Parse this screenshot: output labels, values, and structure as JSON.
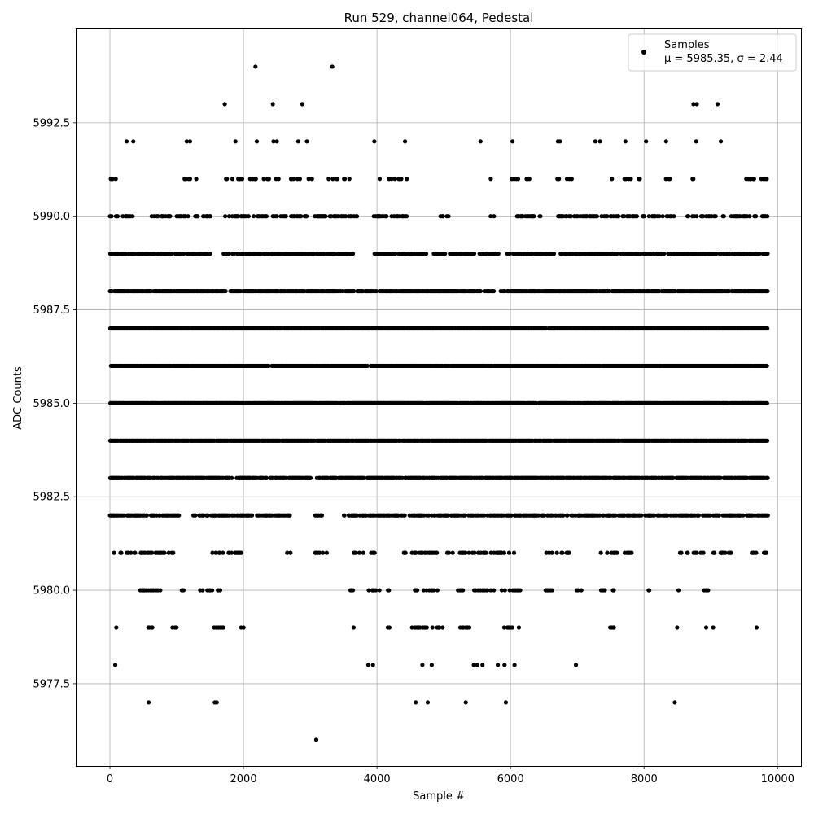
{
  "chart_data": {
    "type": "scatter",
    "title": "Run 529, channel064, Pedestal",
    "xlabel": "Sample #",
    "ylabel": "ADC Counts",
    "xlim": [
      -500,
      10350
    ],
    "ylim": [
      5975.3,
      5995.0
    ],
    "x_ticks": [
      0,
      2000,
      4000,
      6000,
      8000,
      10000
    ],
    "x_tick_labels": [
      "0",
      "2000",
      "4000",
      "6000",
      "8000",
      "10000"
    ],
    "y_ticks": [
      5977.5,
      5980.0,
      5982.5,
      5985.0,
      5987.5,
      5990.0,
      5992.5
    ],
    "y_tick_labels": [
      "5977.5",
      "5980.0",
      "5982.5",
      "5985.0",
      "5987.5",
      "5990.0",
      "5992.5"
    ],
    "grid": true,
    "legend": {
      "placement": "top-right",
      "series_name": "Samples",
      "stats": "μ = 5985.35, σ = 2.44"
    },
    "marker_color": "#000000",
    "series": [
      {
        "name": "Samples",
        "sample_count": 9850,
        "x_range": [
          0,
          9850
        ],
        "mean": 5985.35,
        "std": 2.44,
        "outliers": [
          {
            "x": 2180,
            "y": 5994
          },
          {
            "x": 3330,
            "y": 5994
          },
          {
            "x": 1720,
            "y": 5993
          },
          {
            "x": 2440,
            "y": 5993
          },
          {
            "x": 2880,
            "y": 5993
          },
          {
            "x": 8740,
            "y": 5993
          },
          {
            "x": 8790,
            "y": 5993
          },
          {
            "x": 9100,
            "y": 5993
          },
          {
            "x": 250,
            "y": 5992
          },
          {
            "x": 350,
            "y": 5992
          },
          {
            "x": 1150,
            "y": 5992
          },
          {
            "x": 1200,
            "y": 5992
          },
          {
            "x": 1880,
            "y": 5992
          },
          {
            "x": 2200,
            "y": 5992
          },
          {
            "x": 2450,
            "y": 5992
          },
          {
            "x": 2500,
            "y": 5992
          },
          {
            "x": 2820,
            "y": 5992
          },
          {
            "x": 2950,
            "y": 5992
          },
          {
            "x": 3960,
            "y": 5992
          },
          {
            "x": 4420,
            "y": 5992
          },
          {
            "x": 5550,
            "y": 5992
          },
          {
            "x": 6030,
            "y": 5992
          },
          {
            "x": 6710,
            "y": 5992
          },
          {
            "x": 6740,
            "y": 5992
          },
          {
            "x": 7270,
            "y": 5992
          },
          {
            "x": 7340,
            "y": 5992
          },
          {
            "x": 7720,
            "y": 5992
          },
          {
            "x": 8030,
            "y": 5992
          },
          {
            "x": 8330,
            "y": 5992
          },
          {
            "x": 8780,
            "y": 5992
          },
          {
            "x": 9150,
            "y": 5992
          },
          {
            "x": 3090,
            "y": 5976
          },
          {
            "x": 580,
            "y": 5977
          },
          {
            "x": 1570,
            "y": 5977
          },
          {
            "x": 1600,
            "y": 5977
          },
          {
            "x": 4580,
            "y": 5977
          },
          {
            "x": 4760,
            "y": 5977
          },
          {
            "x": 5330,
            "y": 5977
          },
          {
            "x": 5930,
            "y": 5977
          },
          {
            "x": 8460,
            "y": 5977
          },
          {
            "x": 80,
            "y": 5978
          },
          {
            "x": 3870,
            "y": 5978
          },
          {
            "x": 3940,
            "y": 5978
          },
          {
            "x": 4680,
            "y": 5978
          },
          {
            "x": 4820,
            "y": 5978
          },
          {
            "x": 5450,
            "y": 5978
          },
          {
            "x": 5500,
            "y": 5978
          },
          {
            "x": 5580,
            "y": 5978
          },
          {
            "x": 5810,
            "y": 5978
          },
          {
            "x": 5910,
            "y": 5978
          },
          {
            "x": 6060,
            "y": 5978
          },
          {
            "x": 6980,
            "y": 5978
          }
        ]
      }
    ],
    "rows": [
      {
        "y": 5991,
        "segments": [
          [
            0,
            100
          ],
          [
            1100,
            1300
          ],
          [
            1700,
            2000
          ],
          [
            2100,
            2600
          ],
          [
            2650,
            3050
          ],
          [
            3200,
            3600
          ],
          [
            3950,
            4450
          ],
          [
            5700,
            5750
          ],
          [
            6000,
            6350
          ],
          [
            6700,
            6950
          ],
          [
            7500,
            7950
          ],
          [
            8300,
            8400
          ],
          [
            8650,
            8850
          ],
          [
            9500,
            9850
          ]
        ],
        "density": 0.25
      },
      {
        "y": 5990,
        "segments": [
          [
            0,
            350
          ],
          [
            600,
            1500
          ],
          [
            1650,
            2100
          ],
          [
            2150,
            2950
          ],
          [
            3050,
            3700
          ],
          [
            3950,
            4450
          ],
          [
            4950,
            5150
          ],
          [
            5700,
            5750
          ],
          [
            6050,
            6450
          ],
          [
            6700,
            7300
          ],
          [
            7350,
            7900
          ],
          [
            7950,
            8450
          ],
          [
            8650,
            9200
          ],
          [
            9300,
            9850
          ]
        ],
        "density": 0.45
      },
      {
        "y": 5989,
        "segments": [
          [
            0,
            1500
          ],
          [
            1700,
            3650
          ],
          [
            3950,
            4750
          ],
          [
            4850,
            5450
          ],
          [
            5500,
            5850
          ],
          [
            5950,
            6650
          ],
          [
            6750,
            9850
          ]
        ],
        "density": 0.75
      },
      {
        "y": 5988,
        "segments": [
          [
            0,
            1750
          ],
          [
            1800,
            3650
          ],
          [
            3700,
            5550
          ],
          [
            5600,
            5750
          ],
          [
            5850,
            9850
          ]
        ],
        "density": 0.85
      },
      {
        "y": 5987,
        "segments": [
          [
            0,
            9850
          ]
        ],
        "density": 0.95
      },
      {
        "y": 5986,
        "segments": [
          [
            0,
            9850
          ]
        ],
        "density": 0.95
      },
      {
        "y": 5985,
        "segments": [
          [
            0,
            9850
          ]
        ],
        "density": 0.95
      },
      {
        "y": 5984,
        "segments": [
          [
            0,
            9850
          ]
        ],
        "density": 0.95
      },
      {
        "y": 5983,
        "segments": [
          [
            0,
            1850
          ],
          [
            1900,
            2350
          ],
          [
            2400,
            3000
          ],
          [
            3100,
            3800
          ],
          [
            3850,
            9850
          ]
        ],
        "density": 0.85
      },
      {
        "y": 5982,
        "segments": [
          [
            0,
            1050
          ],
          [
            1250,
            2150
          ],
          [
            2200,
            2700
          ],
          [
            3050,
            3200
          ],
          [
            3500,
            5600
          ],
          [
            5650,
            9850
          ]
        ],
        "density": 0.6
      },
      {
        "y": 5981,
        "segments": [
          [
            0,
            950
          ],
          [
            1450,
            2000
          ],
          [
            2650,
            2700
          ],
          [
            3050,
            3250
          ],
          [
            3600,
            4000
          ],
          [
            4400,
            4900
          ],
          [
            5050,
            5650
          ],
          [
            5700,
            6100
          ],
          [
            6500,
            6900
          ],
          [
            7350,
            7850
          ],
          [
            8450,
            8900
          ],
          [
            9000,
            9300
          ],
          [
            9600,
            9850
          ]
        ],
        "density": 0.35
      },
      {
        "y": 5980,
        "segments": [
          [
            450,
            750
          ],
          [
            1050,
            1100
          ],
          [
            1350,
            1650
          ],
          [
            3100,
            3150
          ],
          [
            3600,
            3700
          ],
          [
            3850,
            4050
          ],
          [
            4150,
            4200
          ],
          [
            4550,
            4900
          ],
          [
            5200,
            5300
          ],
          [
            5450,
            5750
          ],
          [
            5850,
            6150
          ],
          [
            6500,
            6750
          ],
          [
            6950,
            7100
          ],
          [
            7350,
            7550
          ],
          [
            8050,
            8100
          ],
          [
            8500,
            8550
          ],
          [
            8850,
            9000
          ],
          [
            9600,
            9650
          ]
        ],
        "density": 0.4
      },
      {
        "y": 5979,
        "segments": [
          [
            90,
            100
          ],
          [
            560,
            650
          ],
          [
            900,
            1000
          ],
          [
            1500,
            1750
          ],
          [
            1900,
            2000
          ],
          [
            3650,
            3650
          ],
          [
            4150,
            4200
          ],
          [
            4500,
            5000
          ],
          [
            5150,
            5400
          ],
          [
            5900,
            6050
          ],
          [
            6120,
            6130
          ],
          [
            7450,
            7550
          ],
          [
            8490,
            8500
          ],
          [
            8900,
            9050
          ],
          [
            9680,
            9690
          ]
        ],
        "density": 0.35
      }
    ]
  }
}
